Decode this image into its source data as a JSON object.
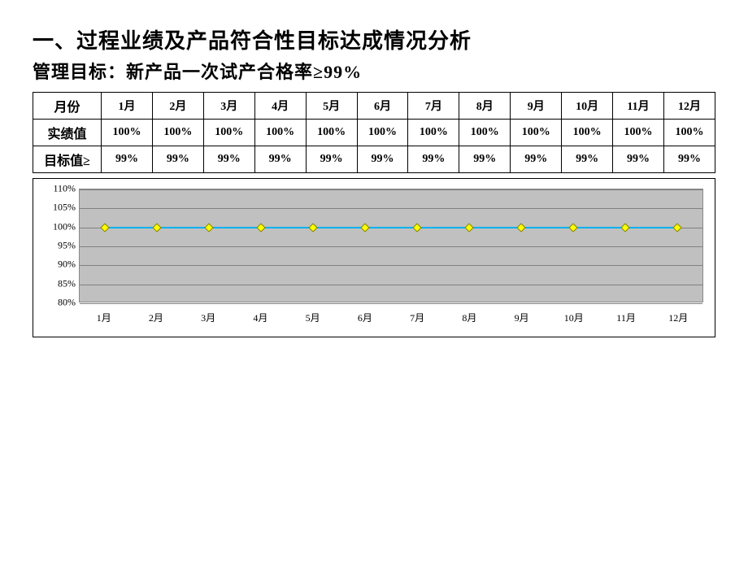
{
  "title": "一、过程业绩及产品符合性目标达成情况分析",
  "subtitle": "管理目标：新产品一次试产合格率≥99%",
  "table": {
    "header_label": "月份",
    "row1_label": "实绩值",
    "row2_label": "目标值≥",
    "months": [
      "1月",
      "2月",
      "3月",
      "4月",
      "5月",
      "6月",
      "7月",
      "8月",
      "9月",
      "10月",
      "11月",
      "12月"
    ],
    "actual": [
      "100%",
      "100%",
      "100%",
      "100%",
      "100%",
      "100%",
      "100%",
      "100%",
      "100%",
      "100%",
      "100%",
      "100%"
    ],
    "target": [
      "99%",
      "99%",
      "99%",
      "99%",
      "99%",
      "99%",
      "99%",
      "99%",
      "99%",
      "99%",
      "99%",
      "99%"
    ]
  },
  "chart": {
    "type": "line",
    "background_color": "#c0c0c0",
    "grid_color": "#808080",
    "plot_border_color": "#888888",
    "y_axis": {
      "min": 80,
      "max": 110,
      "ticks": [
        80,
        85,
        90,
        95,
        100,
        105,
        110
      ],
      "tick_labels": [
        "80%",
        "85%",
        "90%",
        "95%",
        "100%",
        "105%",
        "110%"
      ],
      "label_fontsize": 12
    },
    "x_axis": {
      "categories": [
        "1月",
        "2月",
        "3月",
        "4月",
        "5月",
        "6月",
        "7月",
        "8月",
        "9月",
        "10月",
        "11月",
        "12月"
      ],
      "label_fontsize": 12
    },
    "series": [
      {
        "name": "actual",
        "values": [
          100,
          100,
          100,
          100,
          100,
          100,
          100,
          100,
          100,
          100,
          100,
          100
        ],
        "line_color": "#00b0f0",
        "line_width": 2,
        "marker_style": "diamond",
        "marker_color": "#ffff00",
        "marker_border": "#808000",
        "marker_size": 8
      }
    ]
  }
}
